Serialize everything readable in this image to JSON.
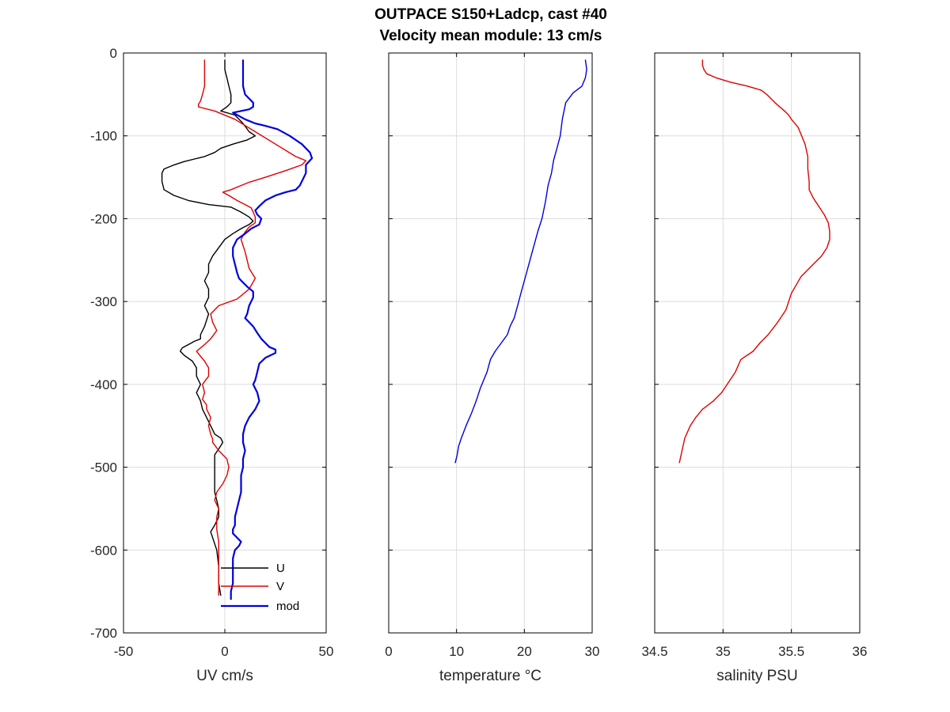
{
  "title_line1": "OUTPACE S150+Ladcp, cast #40",
  "title_line2": "Velocity mean module:  13 cm/s",
  "colors": {
    "U": "#000000",
    "V": "#e00000",
    "mod": "#0000e0",
    "temperature": "#0000e0",
    "salinity": "#e00000"
  },
  "chart_data": [
    {
      "type": "line",
      "xlabel": "UV cm/s",
      "ylabel": "",
      "xlim": [
        -50,
        50
      ],
      "ylim": [
        -700,
        0
      ],
      "xticks": [
        "-50",
        "0",
        "50"
      ],
      "yticks": [
        "0",
        "-100",
        "-200",
        "-300",
        "-400",
        "-500",
        "-600",
        "-700"
      ],
      "grid": true,
      "legend_position": "bottom-right",
      "series": [
        {
          "name": "U",
          "color": "#000000",
          "width": 1.4,
          "x": [
            0,
            0,
            1,
            2,
            3,
            3,
            1,
            -2,
            5,
            9,
            12,
            15,
            11,
            4,
            -2,
            -5,
            -10,
            -15,
            -20,
            -25,
            -30,
            -31,
            -31,
            -30,
            -25,
            -18,
            -8,
            3,
            8,
            12,
            14,
            12,
            8,
            4,
            0,
            -3,
            -6,
            -8,
            -8,
            -10,
            -8,
            -8,
            -10,
            -8,
            -10,
            -12,
            -12,
            -15,
            -18,
            -21,
            -22,
            -20,
            -16,
            -14,
            -14,
            -12,
            -14,
            -12,
            -11,
            -9,
            -7,
            -5,
            -2,
            -1,
            -3,
            -5,
            -5,
            -5,
            -5,
            -4,
            -3,
            -3,
            -5,
            -7,
            -6,
            -4,
            -3,
            -3,
            -2
          ],
          "y": [
            -8,
            -20,
            -30,
            -40,
            -50,
            -60,
            -65,
            -70,
            -75,
            -85,
            -95,
            -100,
            -105,
            -110,
            -115,
            -120,
            -125,
            -128,
            -131,
            -135,
            -140,
            -145,
            -155,
            -165,
            -172,
            -178,
            -183,
            -186,
            -192,
            -198,
            -203,
            -207,
            -212,
            -218,
            -225,
            -235,
            -245,
            -255,
            -265,
            -275,
            -285,
            -295,
            -305,
            -315,
            -330,
            -340,
            -345,
            -348,
            -352,
            -356,
            -360,
            -365,
            -372,
            -380,
            -390,
            -400,
            -410,
            -420,
            -430,
            -440,
            -450,
            -460,
            -465,
            -470,
            -478,
            -485,
            -495,
            -510,
            -530,
            -540,
            -550,
            -560,
            -570,
            -578,
            -585,
            -600,
            -620,
            -640,
            -655
          ]
        },
        {
          "name": "V",
          "color": "#e00000",
          "width": 1.4,
          "x": [
            -10,
            -10,
            -10,
            -10,
            -11,
            -12,
            -13,
            -13,
            -5,
            5,
            15,
            25,
            35,
            40,
            38,
            30,
            20,
            12,
            8,
            3,
            -1,
            2,
            6,
            10,
            13,
            14,
            15,
            15,
            12,
            10,
            8,
            10,
            12,
            15,
            12,
            6,
            -3,
            -7,
            -6,
            -4,
            -7,
            -10,
            -12,
            -14,
            -12,
            -10,
            -8,
            -8,
            -11,
            -10,
            -11,
            -9,
            -9,
            -7,
            -8,
            -7,
            -6,
            -6,
            -3,
            1,
            2,
            1,
            -1,
            -4,
            -5,
            -3,
            -4,
            -4,
            -3,
            -3,
            -3,
            -3
          ],
          "y": [
            -8,
            -20,
            -30,
            -40,
            -50,
            -58,
            -62,
            -65,
            -70,
            -80,
            -95,
            -110,
            -125,
            -130,
            -135,
            -142,
            -150,
            -156,
            -160,
            -165,
            -168,
            -172,
            -178,
            -183,
            -187,
            -192,
            -198,
            -205,
            -210,
            -216,
            -225,
            -240,
            -260,
            -272,
            -285,
            -297,
            -305,
            -315,
            -325,
            -335,
            -345,
            -352,
            -356,
            -360,
            -366,
            -372,
            -380,
            -390,
            -400,
            -410,
            -418,
            -425,
            -430,
            -440,
            -450,
            -460,
            -466,
            -470,
            -480,
            -490,
            -500,
            -510,
            -520,
            -530,
            -540,
            -550,
            -560,
            -575,
            -590,
            -600,
            -620,
            -655
          ]
        },
        {
          "name": "mod",
          "color": "#0000e0",
          "width": 2.2,
          "x": [
            9,
            9,
            9,
            9,
            10,
            12,
            14,
            14,
            12,
            8,
            4,
            10,
            15,
            20,
            26,
            32,
            38,
            42,
            43,
            40,
            40,
            38,
            37,
            35,
            30,
            25,
            20,
            17,
            15,
            16,
            18,
            17,
            13,
            10,
            6,
            4,
            4,
            5,
            6,
            7,
            9,
            11,
            14,
            14,
            12,
            11,
            10,
            12,
            14,
            16,
            18,
            20,
            22,
            25,
            25,
            20,
            17,
            16,
            15,
            14,
            16,
            17,
            15,
            12,
            10,
            9,
            9,
            10,
            9,
            9,
            8,
            8,
            8,
            7,
            6,
            5,
            5,
            4,
            4,
            6,
            8,
            7,
            5,
            4,
            4,
            4,
            4,
            3,
            3,
            3
          ],
          "y": [
            -8,
            -20,
            -30,
            -40,
            -50,
            -55,
            -60,
            -65,
            -68,
            -70,
            -72,
            -80,
            -85,
            -88,
            -92,
            -100,
            -110,
            -120,
            -127,
            -135,
            -145,
            -155,
            -160,
            -165,
            -168,
            -172,
            -178,
            -185,
            -190,
            -195,
            -200,
            -207,
            -212,
            -218,
            -225,
            -235,
            -245,
            -255,
            -265,
            -272,
            -277,
            -282,
            -288,
            -295,
            -305,
            -315,
            -320,
            -325,
            -330,
            -338,
            -345,
            -350,
            -355,
            -358,
            -362,
            -368,
            -375,
            -385,
            -395,
            -400,
            -410,
            -420,
            -430,
            -440,
            -450,
            -460,
            -470,
            -480,
            -490,
            -500,
            -510,
            -520,
            -530,
            -540,
            -550,
            -560,
            -570,
            -575,
            -580,
            -585,
            -590,
            -595,
            -600,
            -610,
            -620,
            -630,
            -640,
            -650,
            -655,
            -660
          ]
        }
      ]
    },
    {
      "type": "line",
      "xlabel": "temperature °C",
      "ylabel": "",
      "xlim": [
        0,
        30
      ],
      "ylim": [
        -700,
        0
      ],
      "xticks": [
        "0",
        "10",
        "20",
        "30"
      ],
      "grid": true,
      "series": [
        {
          "color": "#0000e0",
          "width": 1.4,
          "x": [
            29.0,
            29.2,
            29.0,
            28.5,
            27.2,
            26.1,
            25.6,
            25.3,
            24.8,
            24.3,
            24.0,
            23.5,
            23.1,
            22.6,
            22.0,
            21.5,
            21.0,
            20.5,
            20.0,
            19.5,
            19.0,
            18.5,
            17.9,
            17.5,
            16.6,
            15.7,
            15.0,
            14.5,
            14.0,
            13.5,
            12.9,
            12.2,
            11.4,
            10.7,
            10.3,
            10.1,
            9.8
          ],
          "y": [
            -8,
            -20,
            -30,
            -40,
            -48,
            -60,
            -80,
            -100,
            -115,
            -130,
            -145,
            -160,
            -180,
            -200,
            -215,
            -230,
            -245,
            -260,
            -275,
            -290,
            -305,
            -320,
            -330,
            -340,
            -350,
            -360,
            -370,
            -385,
            -395,
            -405,
            -420,
            -435,
            -450,
            -465,
            -475,
            -485,
            -495
          ]
        }
      ]
    },
    {
      "type": "line",
      "xlabel": "salinity PSU",
      "ylabel": "",
      "xlim": [
        34.5,
        36
      ],
      "ylim": [
        -700,
        0
      ],
      "xticks": [
        "34.5",
        "35",
        "35.5",
        "36"
      ],
      "grid": true,
      "series": [
        {
          "color": "#e00000",
          "width": 1.4,
          "x": [
            34.85,
            34.85,
            34.86,
            34.88,
            34.95,
            35.05,
            35.18,
            35.28,
            35.32,
            35.38,
            35.45,
            35.48,
            35.5,
            35.55,
            35.6,
            35.62,
            35.62,
            35.63,
            35.63,
            35.66,
            35.7,
            35.74,
            35.77,
            35.78,
            35.78,
            35.76,
            35.72,
            35.66,
            35.57,
            35.5,
            35.46,
            35.4,
            35.33,
            35.27,
            35.22,
            35.13,
            35.09,
            35.05,
            34.99,
            34.93,
            34.85,
            34.8,
            34.76,
            34.72,
            34.7,
            34.68
          ],
          "y": [
            -8,
            -15,
            -20,
            -25,
            -30,
            -35,
            -40,
            -45,
            -50,
            -60,
            -70,
            -75,
            -80,
            -90,
            -110,
            -125,
            -140,
            -155,
            -165,
            -175,
            -185,
            -195,
            -205,
            -215,
            -225,
            -235,
            -245,
            -255,
            -270,
            -290,
            -310,
            -325,
            -340,
            -350,
            -360,
            -370,
            -385,
            -395,
            -410,
            -420,
            -430,
            -440,
            -450,
            -465,
            -480,
            -495
          ]
        }
      ]
    }
  ]
}
